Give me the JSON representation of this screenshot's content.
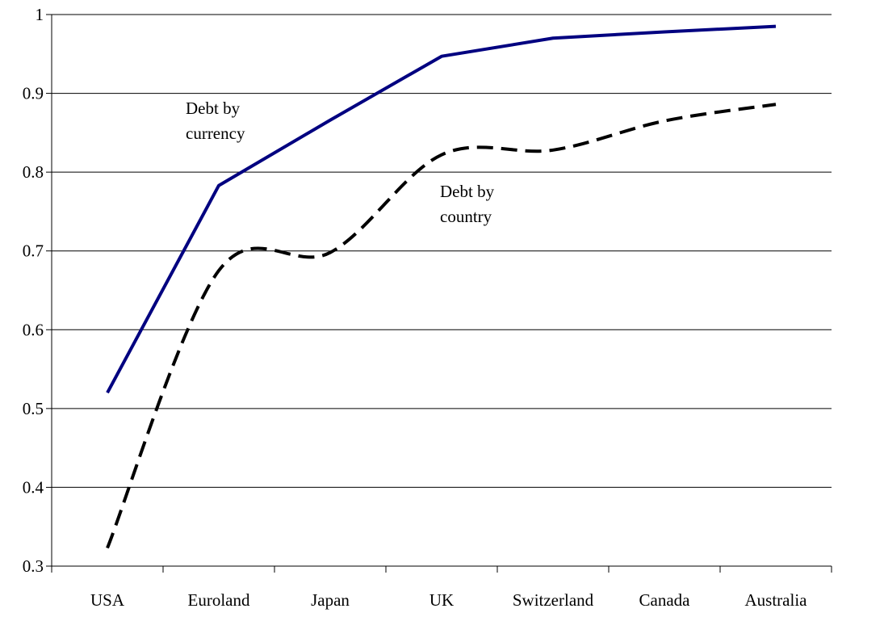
{
  "chart_data": {
    "type": "line",
    "categories": [
      "USA",
      "Euroland",
      "Japan",
      "UK",
      "Switzerland",
      "Canada",
      "Australia"
    ],
    "series": [
      {
        "name": "Debt by currency",
        "label_lines": [
          "Debt by",
          "currency"
        ],
        "values": [
          0.52,
          0.783,
          0.866,
          0.947,
          0.97,
          0.978,
          0.985
        ],
        "color": "#000080",
        "style": "solid",
        "smooth": false
      },
      {
        "name": "Debt by country",
        "label_lines": [
          "Debt by",
          "country"
        ],
        "values": [
          0.323,
          0.675,
          0.698,
          0.822,
          0.828,
          0.865,
          0.886
        ],
        "color": "#000000",
        "style": "dashed",
        "smooth": true
      }
    ],
    "yticks": [
      "0.3",
      "0.4",
      "0.5",
      "0.6",
      "0.7",
      "0.8",
      "0.9",
      "1"
    ],
    "ylim": [
      0.3,
      1.0
    ],
    "grid": true,
    "legend": "inline-annotations"
  }
}
